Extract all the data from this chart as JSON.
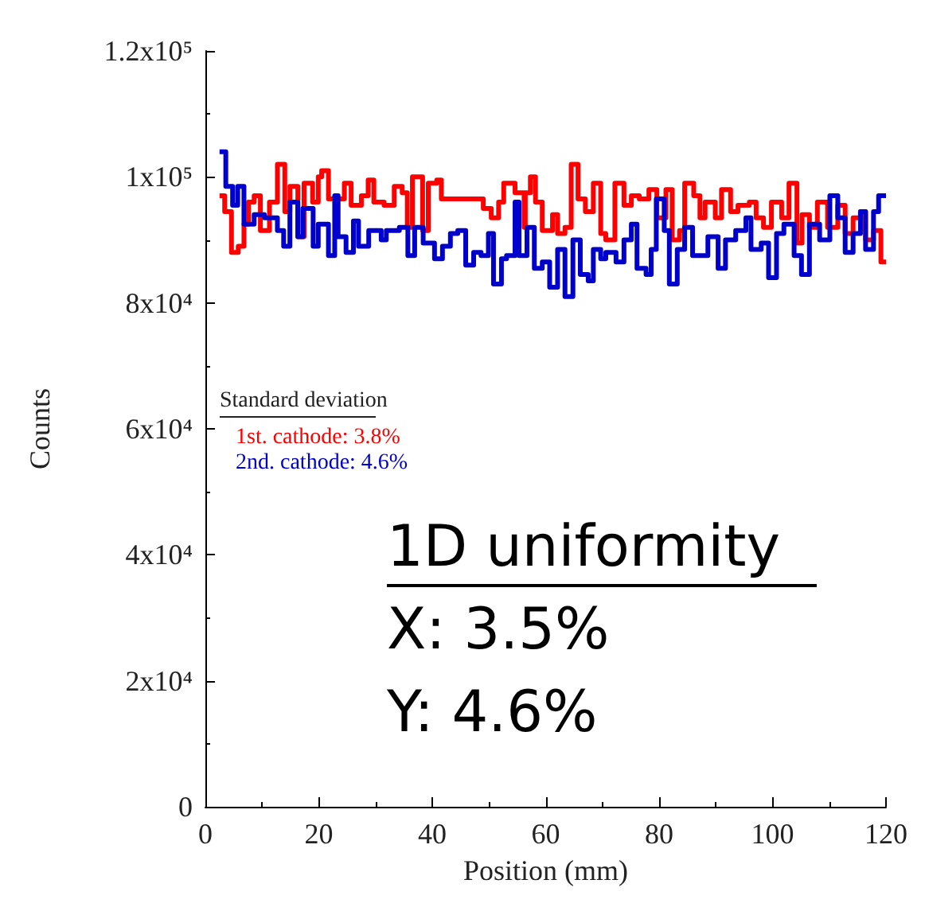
{
  "chart_data": {
    "type": "step",
    "xlabel": "Position (mm)",
    "ylabel": "Counts",
    "legend_title": "Standard deviation",
    "legend": "left",
    "xlim": [
      0,
      120
    ],
    "xticks": [
      0,
      20,
      40,
      60,
      80,
      100,
      120
    ],
    "ylim": [
      0,
      120000
    ],
    "yticks": [
      {
        "value": 0,
        "label": "0"
      },
      {
        "value": 20000,
        "label": "2x10⁴"
      },
      {
        "value": 40000,
        "label": "4x10⁴"
      },
      {
        "value": 60000,
        "label": "6x10⁴"
      },
      {
        "value": 80000,
        "label": "8x10⁴"
      },
      {
        "value": 100000,
        "label": "1x10⁵"
      },
      {
        "value": 120000,
        "label": "1.2x10⁵"
      }
    ],
    "grid": false,
    "series": [
      {
        "name": "1st. cathode: 3.8%",
        "color": "#ff0000",
        "x": [
          2.5,
          3.4,
          4.6,
          5.8,
          6.8,
          7.6,
          8.6,
          9.7,
          11.3,
          12.7,
          14,
          14.9,
          16.3,
          17.4,
          18.9,
          19.9,
          20.5,
          21.7,
          24.5,
          25.7,
          27.5,
          28.7,
          29.7,
          31.5,
          33.3,
          34.7,
          35.6,
          36.5,
          38.3,
          39.3,
          40.8,
          41.6,
          49,
          50.4,
          51.7,
          52.6,
          54.6,
          56.2,
          56.4,
          57.3,
          58.2,
          59.4,
          61.2,
          62.1,
          63.4,
          64.5,
          65.7,
          67,
          68.4,
          69.7,
          70.6,
          72.2,
          73.8,
          75.1,
          76.5,
          78.2,
          79.6,
          81.2,
          82.3,
          83.6,
          84.5,
          86.1,
          87.2,
          88.1,
          89.9,
          91,
          92.6,
          93.9,
          95.9,
          97.1,
          98.4,
          99.8,
          101.6,
          102.9,
          104.3,
          105.2,
          106.5,
          107.9,
          109.7,
          111.5,
          112.8,
          114.2,
          115.5,
          116.4,
          117.8,
          119.1,
          120
        ],
        "values": [
          97000,
          94500,
          88000,
          89000,
          92500,
          96000,
          97000,
          91500,
          96000,
          102000,
          94500,
          98500,
          90500,
          99000,
          96000,
          100000,
          101000,
          96500,
          99000,
          95500,
          97000,
          99500,
          96000,
          95500,
          98500,
          97500,
          92000,
          100000,
          91500,
          99000,
          99500,
          96500,
          95000,
          93500,
          96000,
          99000,
          97500,
          92000,
          97500,
          100000,
          96000,
          91500,
          94000,
          91000,
          92000,
          102000,
          96500,
          94500,
          99000,
          91000,
          90000,
          99000,
          95500,
          97000,
          96500,
          98000,
          93500,
          98000,
          90000,
          91500,
          99000,
          97000,
          93500,
          96000,
          93500,
          98000,
          94500,
          95500,
          96000,
          93500,
          92000,
          96000,
          93500,
          99000,
          89500,
          94000,
          92000,
          96000,
          92000,
          95500,
          91000,
          93500,
          94500,
          90000,
          91500,
          86500,
          86500
        ]
      },
      {
        "name": "2nd. cathode: 4.6%",
        "color": "#0000cc",
        "x": [
          2.5,
          3.6,
          4.8,
          5.7,
          6.8,
          8.6,
          10.4,
          12.7,
          13.8,
          14.9,
          16.3,
          17.2,
          19,
          19.9,
          21.7,
          22.8,
          23.4,
          24.8,
          26.1,
          27,
          28.8,
          31,
          31.9,
          34.2,
          35.7,
          36.9,
          38.4,
          40.4,
          41.8,
          43.2,
          44.5,
          45.9,
          47.3,
          48.6,
          49.9,
          50.8,
          52.2,
          53.1,
          54.6,
          55.3,
          56.7,
          58,
          59.4,
          60.7,
          62.1,
          63.4,
          64.8,
          66.1,
          67.5,
          68.4,
          69.7,
          70.6,
          72.4,
          73.8,
          75.1,
          76.1,
          77.7,
          78.6,
          79.5,
          80.9,
          81.8,
          83.2,
          84.5,
          85.9,
          87.2,
          88.6,
          90.4,
          91.7,
          93.5,
          95.3,
          96.2,
          98,
          99.3,
          100.7,
          102,
          103.8,
          105.1,
          106.5,
          108.3,
          110.1,
          111.5,
          112.8,
          114.2,
          115.5,
          116.4,
          117.8,
          118.7,
          120
        ],
        "values": [
          104000,
          98500,
          95500,
          98500,
          92500,
          94000,
          93500,
          91500,
          89000,
          96000,
          90500,
          95000,
          89000,
          92500,
          87500,
          97000,
          90500,
          88000,
          93000,
          89000,
          91500,
          90000,
          91500,
          92000,
          87500,
          92000,
          89500,
          87000,
          89000,
          91000,
          91500,
          86000,
          88000,
          87500,
          91000,
          83000,
          87000,
          87500,
          96000,
          87500,
          92000,
          85500,
          86500,
          82500,
          88500,
          81000,
          90000,
          84500,
          83500,
          88500,
          87000,
          88000,
          86500,
          90000,
          92500,
          85500,
          84500,
          88500,
          96500,
          91500,
          83000,
          88500,
          92000,
          87500,
          87500,
          90500,
          85500,
          90000,
          91500,
          93500,
          88500,
          89500,
          84000,
          91000,
          92500,
          87500,
          84500,
          92500,
          90000,
          97000,
          93500,
          88000,
          91000,
          94500,
          88500,
          94500,
          97000,
          97000
        ]
      }
    ],
    "annotations": [
      "1D uniformity",
      "X: 3.5%",
      "Y: 4.6%"
    ]
  }
}
